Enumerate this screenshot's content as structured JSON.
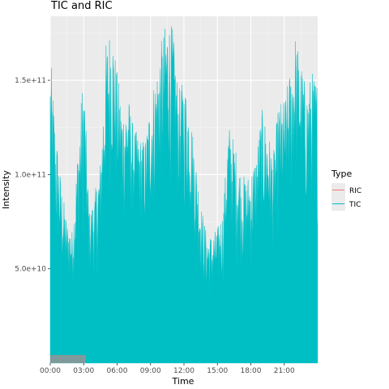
{
  "chart_data": {
    "type": "area",
    "title": "TIC and RIC",
    "xlabel": "Time",
    "ylabel": "Intensity",
    "x_ticks": [
      "00:00",
      "03:00",
      "06:00",
      "09:00",
      "12:00",
      "15:00",
      "18:00",
      "21:00"
    ],
    "y_ticks": [
      {
        "value": 50000000000,
        "label": "5.0e+10"
      },
      {
        "value": 100000000000,
        "label": "1.0e+11"
      },
      {
        "value": 150000000000,
        "label": "1.5e+11"
      }
    ],
    "xlim_hours": [
      0,
      24
    ],
    "ylim": [
      0,
      184000000000
    ],
    "grid": true,
    "legend": {
      "title": "Type",
      "position": "right",
      "entries": [
        {
          "name": "RIC",
          "color": "#f8766d"
        },
        {
          "name": "TIC",
          "color": "#00bfc4"
        }
      ]
    },
    "series": [
      {
        "name": "TIC",
        "color": "#00bfc4",
        "x_hours": [
          0,
          0.5,
          1,
          1.5,
          2,
          2.5,
          3,
          3.5,
          4,
          4.5,
          5,
          5.5,
          6,
          6.5,
          7,
          7.5,
          8,
          8.5,
          9,
          9.5,
          10,
          10.5,
          11,
          11.5,
          12,
          12.5,
          13,
          13.5,
          14,
          14.5,
          15,
          15.5,
          16,
          16.5,
          17,
          17.5,
          18,
          18.5,
          19,
          19.5,
          20,
          20.5,
          21,
          21.5,
          22,
          22.5,
          23,
          23.5,
          24
        ],
        "peak": [
          165000000000,
          125000000000,
          95000000000,
          75000000000,
          70000000000,
          118000000000,
          158000000000,
          80000000000,
          90000000000,
          108000000000,
          170000000000,
          182000000000,
          155000000000,
          135000000000,
          142000000000,
          125000000000,
          120000000000,
          118000000000,
          140000000000,
          155000000000,
          172000000000,
          184000000000,
          178000000000,
          145000000000,
          150000000000,
          138000000000,
          112000000000,
          85000000000,
          70000000000,
          68000000000,
          72000000000,
          80000000000,
          128000000000,
          118000000000,
          105000000000,
          98000000000,
          102000000000,
          112000000000,
          135000000000,
          125000000000,
          110000000000,
          138000000000,
          140000000000,
          155000000000,
          175000000000,
          160000000000,
          145000000000,
          155000000000,
          150000000000
        ],
        "trough": [
          52000000000,
          45000000000,
          40000000000,
          35000000000,
          38000000000,
          45000000000,
          52000000000,
          40000000000,
          40000000000,
          45000000000,
          70000000000,
          85000000000,
          72000000000,
          65000000000,
          70000000000,
          65000000000,
          62000000000,
          60000000000,
          68000000000,
          75000000000,
          80000000000,
          88000000000,
          90000000000,
          75000000000,
          72000000000,
          65000000000,
          55000000000,
          42000000000,
          30000000000,
          28000000000,
          32000000000,
          38000000000,
          55000000000,
          50000000000,
          42000000000,
          40000000000,
          45000000000,
          50000000000,
          60000000000,
          58000000000,
          52000000000,
          60000000000,
          65000000000,
          70000000000,
          80000000000,
          75000000000,
          70000000000,
          72000000000,
          70000000000
        ]
      },
      {
        "name": "RIC",
        "color": "#f8766d",
        "x_hours": [],
        "values": []
      }
    ],
    "annotation_bar": {
      "x_start_hours": 0,
      "x_end_hours": 3.2,
      "color": "#7f9a9a"
    }
  }
}
